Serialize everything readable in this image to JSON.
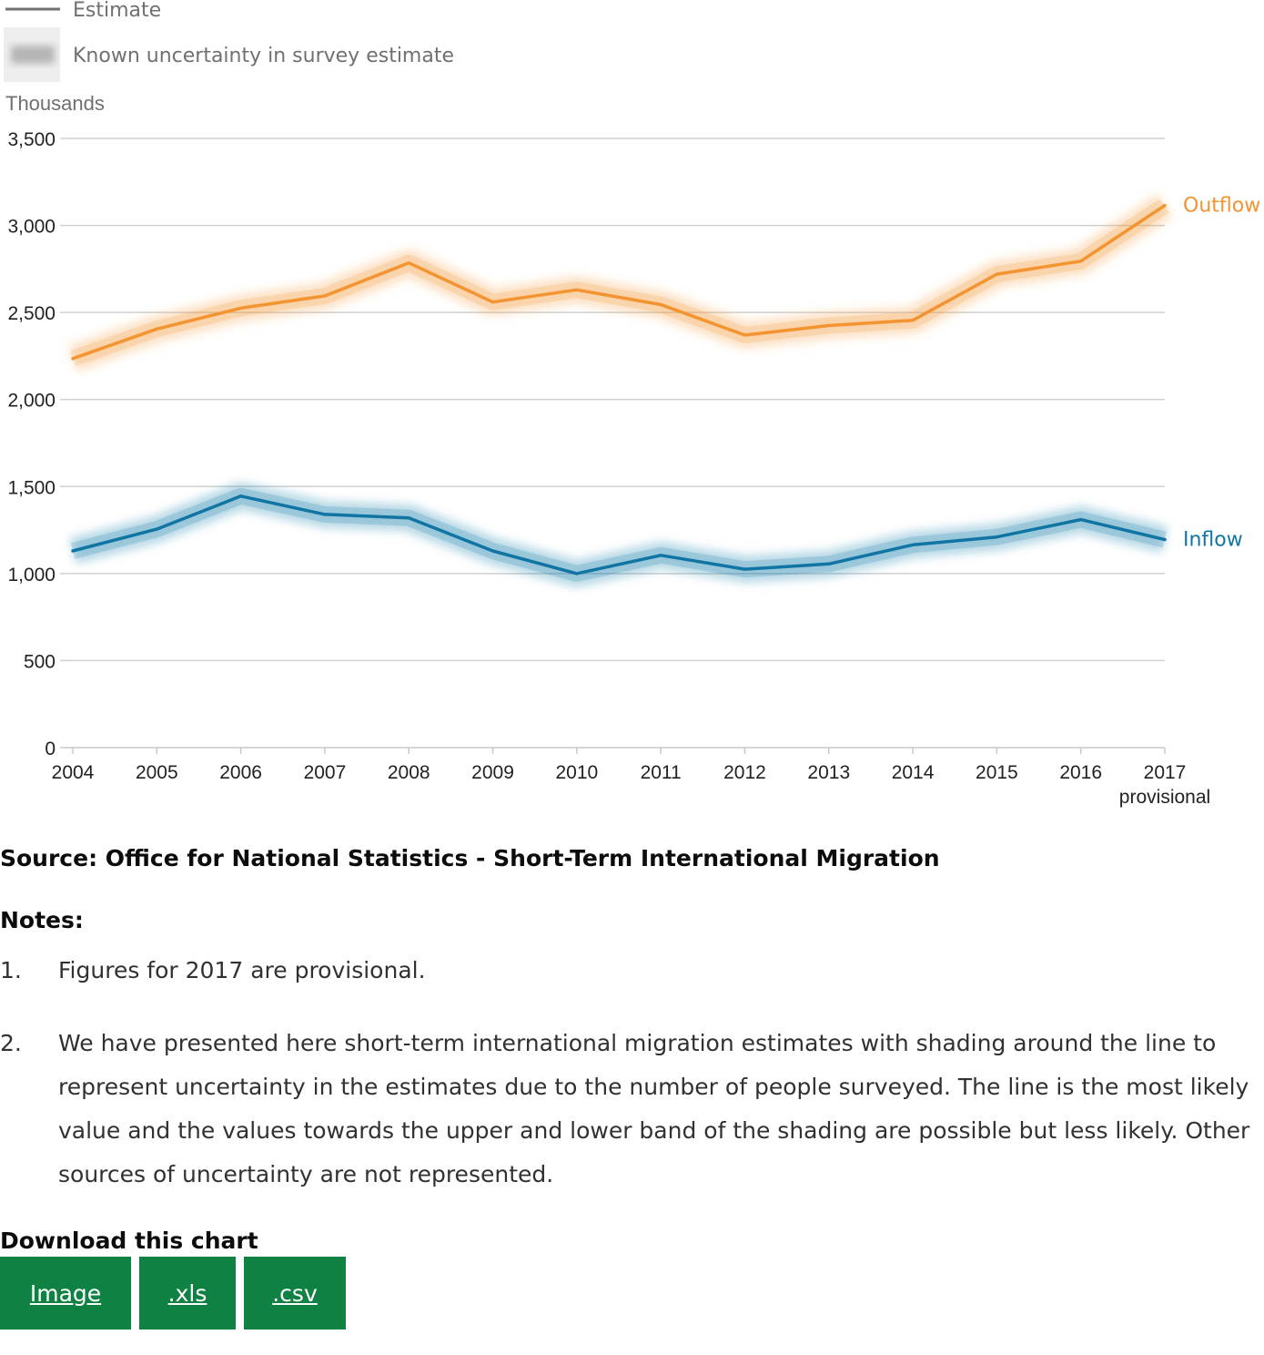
{
  "legend": {
    "estimate_label": "Estimate",
    "uncertainty_label": "Known uncertainty in survey estimate"
  },
  "chart_data": {
    "type": "line",
    "unit_label": "Thousands",
    "x": [
      "2004",
      "2005",
      "2006",
      "2007",
      "2008",
      "2009",
      "2010",
      "2011",
      "2012",
      "2013",
      "2014",
      "2015",
      "2016",
      "2017"
    ],
    "x_sublabel_last": "provisional",
    "yticks": [
      "0",
      "500",
      "1,000",
      "1,500",
      "2,000",
      "2,500",
      "3,000",
      "3,500"
    ],
    "ylim": [
      0,
      3500
    ],
    "grid": true,
    "series": [
      {
        "name": "Outflow",
        "color": "#f39431",
        "values": [
          2235,
          2405,
          2525,
          2595,
          2785,
          2560,
          2630,
          2545,
          2370,
          2425,
          2455,
          2720,
          2795,
          3115
        ]
      },
      {
        "name": "Inflow",
        "color": "#1175a4",
        "values": [
          1130,
          1255,
          1445,
          1340,
          1320,
          1130,
          1000,
          1105,
          1025,
          1055,
          1165,
          1210,
          1310,
          1195
        ]
      }
    ]
  },
  "footer": {
    "source": "Source: Office for National Statistics - Short-Term International Migration",
    "notes_title": "Notes:",
    "notes": [
      {
        "num": "1.",
        "text": "Figures for 2017 are provisional."
      },
      {
        "num": "2.",
        "text": "We have presented here short-term international migration estimates with shading around the line to represent uncertainty in the estimates due to the number of people surveyed. The line is the most likely value and the values towards the upper and lower band of the shading are possible but less likely. Other sources of uncertainty are not represented."
      }
    ],
    "download_title": "Download this chart",
    "buttons": [
      {
        "label": "Image"
      },
      {
        "label": ".xls"
      },
      {
        "label": ".csv"
      }
    ]
  }
}
